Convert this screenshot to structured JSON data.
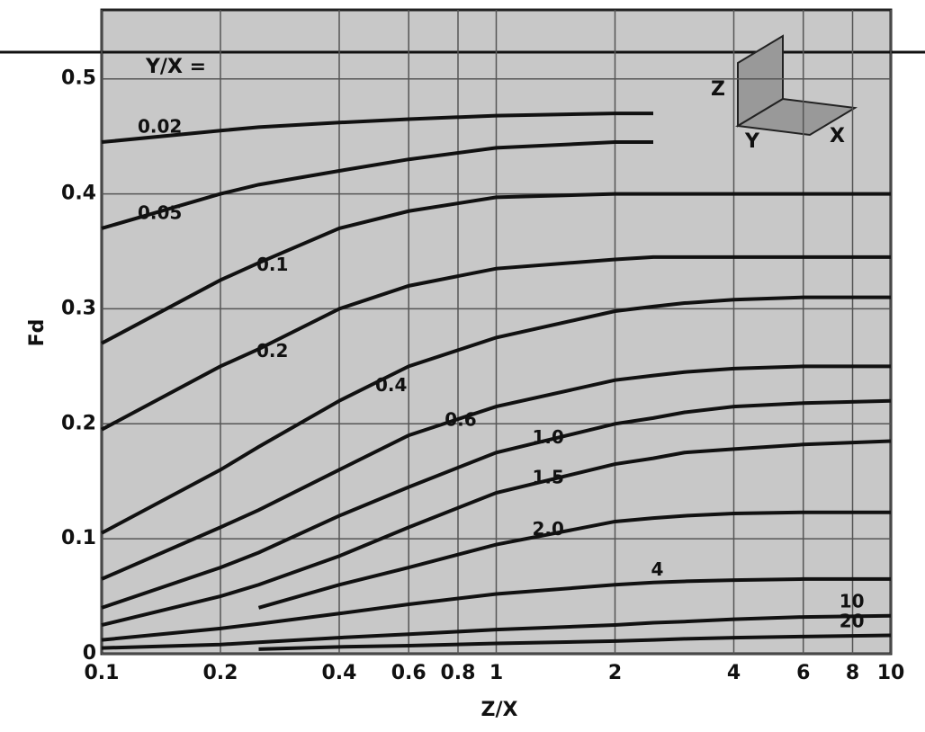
{
  "chart_data": {
    "type": "line",
    "x_label": "Z/X",
    "y_label": "Fd",
    "legend_title": "Y/X =",
    "axes_icon_labels": [
      "Z",
      "Y",
      "X"
    ],
    "x": [
      0.1,
      0.2,
      0.25,
      0.4,
      0.6,
      1,
      2,
      2.5,
      3,
      4,
      6,
      10
    ],
    "series": [
      {
        "name": "0.02",
        "color": "#111111",
        "values": [
          0.445,
          0.455,
          0.458,
          0.462,
          0.465,
          0.468,
          0.47,
          0.47,
          null,
          null,
          null,
          null
        ]
      },
      {
        "name": "0.05",
        "color": "#111111",
        "values": [
          0.37,
          0.4,
          0.408,
          0.42,
          0.43,
          0.44,
          0.445,
          0.445,
          null,
          null,
          null,
          null
        ]
      },
      {
        "name": "0.1",
        "color": "#111111",
        "values": [
          0.27,
          0.325,
          0.34,
          0.37,
          0.385,
          0.397,
          0.4,
          0.4,
          0.4,
          0.4,
          0.4,
          0.4
        ]
      },
      {
        "name": "0.2",
        "color": "#111111",
        "values": [
          0.195,
          0.25,
          0.265,
          0.3,
          0.32,
          0.335,
          0.343,
          0.345,
          0.345,
          0.345,
          0.345,
          0.345
        ]
      },
      {
        "name": "0.4",
        "color": "#111111",
        "values": [
          0.105,
          0.16,
          0.18,
          0.22,
          0.25,
          0.275,
          0.298,
          0.302,
          0.305,
          0.308,
          0.31,
          0.31
        ]
      },
      {
        "name": "0.6",
        "color": "#111111",
        "values": [
          0.065,
          0.11,
          0.125,
          0.16,
          0.19,
          0.215,
          0.238,
          0.242,
          0.245,
          0.248,
          0.25,
          0.25
        ]
      },
      {
        "name": "1.0",
        "color": "#111111",
        "values": [
          0.04,
          0.075,
          0.088,
          0.12,
          0.145,
          0.175,
          0.2,
          0.205,
          0.21,
          0.215,
          0.218,
          0.22
        ]
      },
      {
        "name": "1.5",
        "color": "#111111",
        "values": [
          0.025,
          0.05,
          0.06,
          0.085,
          0.11,
          0.14,
          0.165,
          0.17,
          0.175,
          0.178,
          0.182,
          0.185
        ]
      },
      {
        "name": "2.0",
        "color": "#111111",
        "values": [
          null,
          null,
          0.04,
          0.06,
          0.075,
          0.095,
          0.115,
          0.118,
          0.12,
          0.122,
          0.123,
          0.123
        ]
      },
      {
        "name": "4",
        "color": "#111111",
        "values": [
          0.012,
          0.022,
          0.026,
          0.035,
          0.043,
          0.052,
          0.06,
          0.062,
          0.063,
          0.064,
          0.065,
          0.065
        ]
      },
      {
        "name": "10",
        "color": "#111111",
        "values": [
          0.005,
          0.008,
          0.01,
          0.014,
          0.017,
          0.021,
          0.025,
          0.027,
          0.028,
          0.03,
          0.032,
          0.033
        ]
      },
      {
        "name": "20",
        "color": "#111111",
        "values": [
          null,
          null,
          0.004,
          0.006,
          0.007,
          0.009,
          0.011,
          0.012,
          0.013,
          0.014,
          0.015,
          0.016
        ]
      }
    ],
    "xlog": true,
    "xlim": [
      0.1,
      10
    ],
    "ylim": [
      0,
      0.56
    ],
    "xticks": [
      0.1,
      0.2,
      0.4,
      0.6,
      0.8,
      1,
      2,
      4,
      6,
      8,
      10
    ],
    "yticks": [
      0,
      0.1,
      0.2,
      0.3,
      0.4,
      0.5
    ],
    "grid": true
  }
}
